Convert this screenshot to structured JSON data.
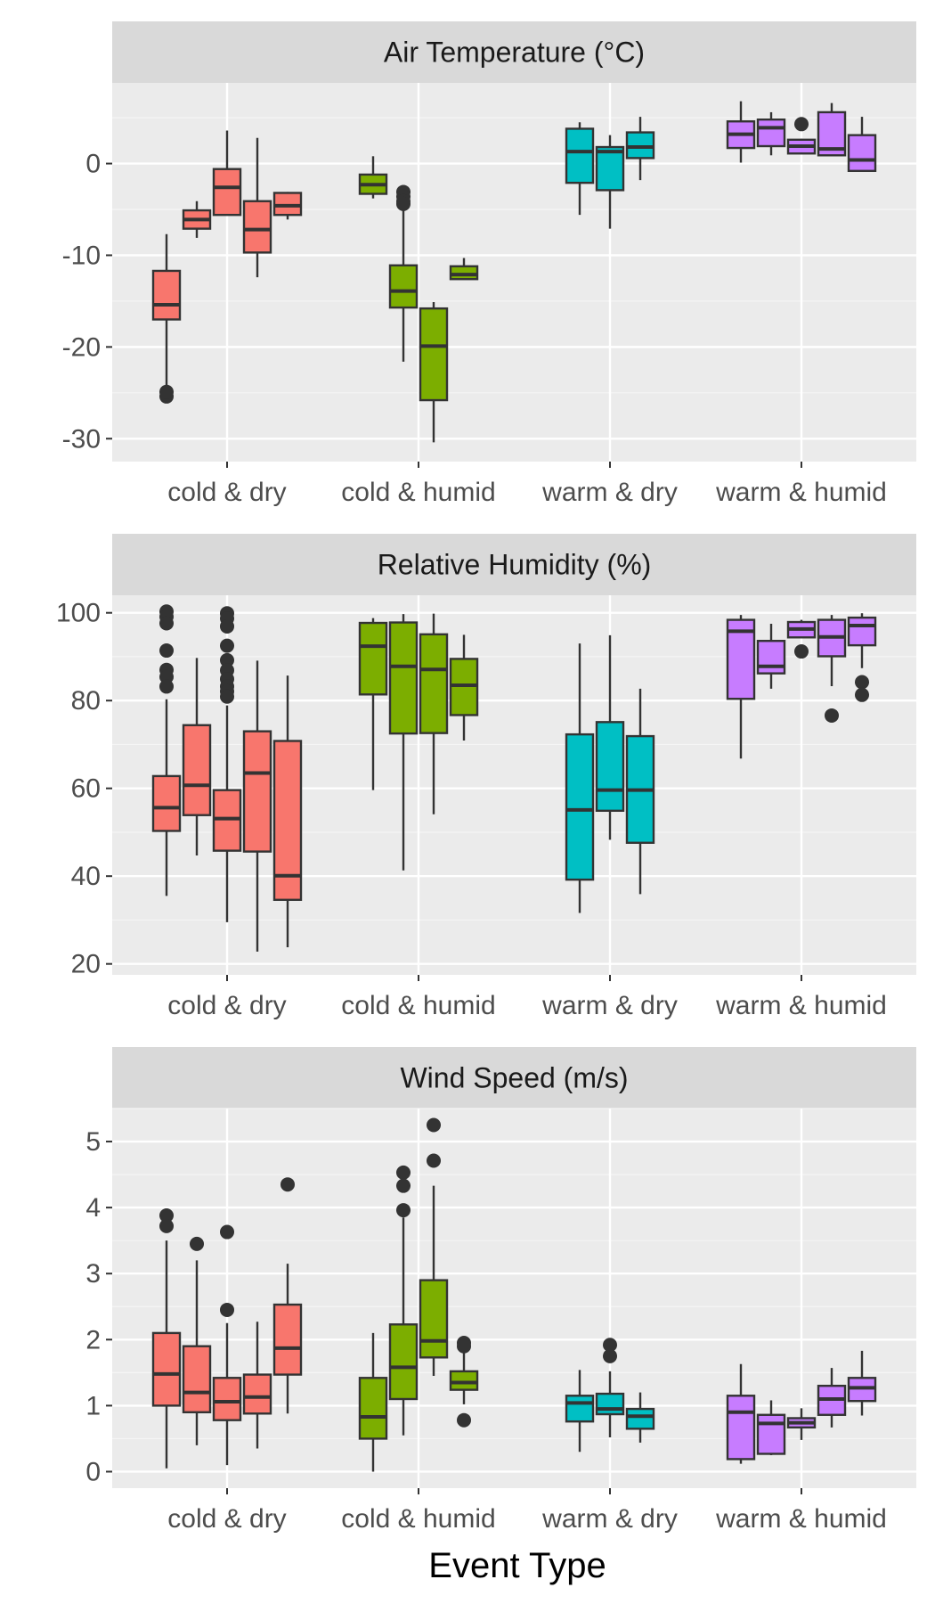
{
  "chart_data": {
    "type": "boxplot",
    "xlabel": "Event Type",
    "categories": [
      "cold & dry",
      "cold & humid",
      "warm & dry",
      "warm & humid"
    ],
    "group_colors": {
      "cold & dry": "#F8766D",
      "cold & humid": "#7CAE00",
      "warm & dry": "#00BFC4",
      "warm & humid": "#C77CFF"
    },
    "panels": [
      {
        "title": "Air Temperature (°C)",
        "ylim": [
          -32.5,
          8.8
        ],
        "yticks": [
          0,
          -10,
          -20,
          -30
        ],
        "ytick_labels": [
          "0",
          "-10",
          "-20",
          "-30"
        ],
        "groups": [
          {
            "category": "cold & dry",
            "boxes": [
              {
                "low": -25,
                "q1": -17,
                "median": -15.4,
                "q3": -11.7,
                "high": -7.7,
                "outliers": [
                  -25.4,
                  -24.9
                ]
              },
              {
                "low": -8.1,
                "q1": -7.1,
                "median": -6.1,
                "q3": -5.1,
                "high": -4.1,
                "outliers": []
              },
              {
                "low": -5.6,
                "q1": -5.6,
                "median": -2.6,
                "q3": -0.6,
                "high": 3.6,
                "outliers": []
              },
              {
                "low": -12.4,
                "q1": -9.7,
                "median": -7.2,
                "q3": -4.1,
                "high": 2.8,
                "outliers": []
              },
              {
                "low": -6.1,
                "q1": -5.6,
                "median": -4.6,
                "q3": -3.2,
                "high": -3.1,
                "outliers": []
              }
            ]
          },
          {
            "category": "cold & humid",
            "boxes": [
              {
                "low": -3.8,
                "q1": -3.3,
                "median": -2.3,
                "q3": -1.2,
                "high": 0.8,
                "outliers": []
              },
              {
                "low": -21.6,
                "q1": -15.7,
                "median": -13.9,
                "q3": -11.1,
                "high": -4.6,
                "outliers": [
                  -3.1,
                  -3.6,
                  -4.1,
                  -4.4
                ]
              },
              {
                "low": -30.4,
                "q1": -25.8,
                "median": -19.9,
                "q3": -15.8,
                "high": -15.1,
                "outliers": []
              },
              {
                "low": -12.6,
                "q1": -12.6,
                "median": -12.1,
                "q3": -11.2,
                "high": -10.3,
                "outliers": []
              }
            ]
          },
          {
            "category": "warm & dry",
            "boxes": [
              {
                "low": -5.6,
                "q1": -2.1,
                "median": 1.3,
                "q3": 3.8,
                "high": 4.5,
                "outliers": []
              },
              {
                "low": -7.1,
                "q1": -2.9,
                "median": 1.3,
                "q3": 1.8,
                "high": 3.1,
                "outliers": []
              },
              {
                "low": -1.8,
                "q1": 0.6,
                "median": 1.8,
                "q3": 3.4,
                "high": 5.1,
                "outliers": []
              }
            ]
          },
          {
            "category": "warm & humid",
            "boxes": [
              {
                "low": 0.1,
                "q1": 1.7,
                "median": 3.2,
                "q3": 4.6,
                "high": 6.8,
                "outliers": []
              },
              {
                "low": 0.9,
                "q1": 1.9,
                "median": 3.9,
                "q3": 4.8,
                "high": 5.6,
                "outliers": []
              },
              {
                "low": 1.1,
                "q1": 1.1,
                "median": 1.9,
                "q3": 2.6,
                "high": 2.7,
                "outliers": [
                  4.3
                ]
              },
              {
                "low": 0.9,
                "q1": 0.9,
                "median": 1.6,
                "q3": 5.6,
                "high": 6.6,
                "outliers": []
              },
              {
                "low": -0.8,
                "q1": -0.8,
                "median": 0.4,
                "q3": 3.1,
                "high": 5.1,
                "outliers": []
              }
            ]
          }
        ]
      },
      {
        "title": "Relative Humidity (%)",
        "ylim": [
          17.5,
          104
        ],
        "yticks": [
          100,
          80,
          60,
          40,
          20
        ],
        "ytick_labels": [
          "100",
          "80",
          "60",
          "40",
          "20"
        ],
        "groups": [
          {
            "category": "cold & dry",
            "boxes": [
              {
                "low": 35.5,
                "q1": 50.3,
                "median": 55.6,
                "q3": 62.8,
                "high": 80.3,
                "outliers": [
                  100.3,
                  99.1,
                  97.6,
                  91.4,
                  87.0,
                  85.4,
                  83.2
                ]
              },
              {
                "low": 44.7,
                "q1": 53.9,
                "median": 60.7,
                "q3": 74.4,
                "high": 89.7,
                "outliers": []
              },
              {
                "low": 29.5,
                "q1": 45.8,
                "median": 53.1,
                "q3": 59.6,
                "high": 78.9,
                "outliers": [
                  99.9,
                  98.7,
                  96.9,
                  92.5,
                  89.2,
                  86.9,
                  84.9,
                  83.2,
                  82.1,
                  80.9
                ]
              },
              {
                "low": 22.8,
                "q1": 45.6,
                "median": 63.5,
                "q3": 73.0,
                "high": 89.1,
                "outliers": []
              },
              {
                "low": 23.8,
                "q1": 34.6,
                "median": 40.1,
                "q3": 70.8,
                "high": 85.7,
                "outliers": []
              }
            ]
          },
          {
            "category": "cold & humid",
            "boxes": [
              {
                "low": 59.6,
                "q1": 81.4,
                "median": 92.4,
                "q3": 97.7,
                "high": 98.8,
                "outliers": []
              },
              {
                "low": 41.3,
                "q1": 72.5,
                "median": 87.8,
                "q3": 97.8,
                "high": 99.7,
                "outliers": []
              },
              {
                "low": 54.1,
                "q1": 72.6,
                "median": 87.1,
                "q3": 95.1,
                "high": 99.8,
                "outliers": []
              },
              {
                "low": 70.9,
                "q1": 76.7,
                "median": 83.5,
                "q3": 89.5,
                "high": 95.0,
                "outliers": []
              }
            ]
          },
          {
            "category": "warm & dry",
            "boxes": [
              {
                "low": 31.6,
                "q1": 39.2,
                "median": 55.1,
                "q3": 72.3,
                "high": 93.0,
                "outliers": []
              },
              {
                "low": 48.3,
                "q1": 54.9,
                "median": 59.6,
                "q3": 75.1,
                "high": 94.9,
                "outliers": []
              },
              {
                "low": 35.9,
                "q1": 47.6,
                "median": 59.6,
                "q3": 71.9,
                "high": 82.7,
                "outliers": []
              }
            ]
          },
          {
            "category": "warm & humid",
            "boxes": [
              {
                "low": 66.8,
                "q1": 80.4,
                "median": 95.8,
                "q3": 98.4,
                "high": 99.5,
                "outliers": []
              },
              {
                "low": 82.7,
                "q1": 86.2,
                "median": 87.8,
                "q3": 93.6,
                "high": 97.5,
                "outliers": []
              },
              {
                "low": 94.4,
                "q1": 94.4,
                "median": 96.3,
                "q3": 97.9,
                "high": 98.4,
                "outliers": [
                  91.2
                ]
              },
              {
                "low": 83.3,
                "q1": 90.1,
                "median": 94.5,
                "q3": 98.4,
                "high": 99.5,
                "outliers": [
                  76.6
                ]
              },
              {
                "low": 87.4,
                "q1": 92.6,
                "median": 97.1,
                "q3": 98.9,
                "high": 99.9,
                "outliers": [
                  84.2,
                  81.3
                ]
              }
            ]
          }
        ]
      },
      {
        "title": "Wind Speed (m/s)",
        "ylim": [
          -0.25,
          5.5
        ],
        "yticks": [
          5,
          4,
          3,
          2,
          1,
          0
        ],
        "ytick_labels": [
          "5",
          "4",
          "3",
          "2",
          "1",
          "0"
        ],
        "groups": [
          {
            "category": "cold & dry",
            "boxes": [
              {
                "low": 0.05,
                "q1": 1.0,
                "median": 1.48,
                "q3": 2.1,
                "high": 3.5,
                "outliers": [
                  3.88,
                  3.72
                ]
              },
              {
                "low": 0.4,
                "q1": 0.9,
                "median": 1.2,
                "q3": 1.9,
                "high": 3.2,
                "outliers": [
                  3.45
                ]
              },
              {
                "low": 0.1,
                "q1": 0.78,
                "median": 1.06,
                "q3": 1.42,
                "high": 2.25,
                "outliers": [
                  3.63,
                  2.45
                ]
              },
              {
                "low": 0.35,
                "q1": 0.88,
                "median": 1.13,
                "q3": 1.47,
                "high": 2.27,
                "outliers": []
              },
              {
                "low": 0.88,
                "q1": 1.47,
                "median": 1.87,
                "q3": 2.53,
                "high": 3.15,
                "outliers": [
                  4.35
                ]
              }
            ]
          },
          {
            "category": "cold & humid",
            "boxes": [
              {
                "low": 0.0,
                "q1": 0.5,
                "median": 0.83,
                "q3": 1.42,
                "high": 2.1,
                "outliers": []
              },
              {
                "low": 0.55,
                "q1": 1.1,
                "median": 1.58,
                "q3": 2.23,
                "high": 3.85,
                "outliers": [
                  4.53,
                  4.33,
                  3.96
                ]
              },
              {
                "low": 1.45,
                "q1": 1.73,
                "median": 1.98,
                "q3": 2.9,
                "high": 4.33,
                "outliers": [
                  5.25,
                  4.71
                ]
              },
              {
                "low": 1.02,
                "q1": 1.24,
                "median": 1.35,
                "q3": 1.52,
                "high": 1.85,
                "outliers": [
                  1.95,
                  1.9,
                  0.78
                ]
              }
            ]
          },
          {
            "category": "warm & dry",
            "boxes": [
              {
                "low": 0.3,
                "q1": 0.76,
                "median": 1.04,
                "q3": 1.15,
                "high": 1.54,
                "outliers": []
              },
              {
                "low": 0.52,
                "q1": 0.87,
                "median": 0.95,
                "q3": 1.18,
                "high": 1.52,
                "outliers": [
                  1.92,
                  1.75
                ]
              },
              {
                "low": 0.44,
                "q1": 0.65,
                "median": 0.84,
                "q3": 0.95,
                "high": 1.2,
                "outliers": []
              }
            ]
          },
          {
            "category": "warm & humid",
            "boxes": [
              {
                "low": 0.12,
                "q1": 0.19,
                "median": 0.9,
                "q3": 1.15,
                "high": 1.63,
                "outliers": []
              },
              {
                "low": 0.25,
                "q1": 0.27,
                "median": 0.73,
                "q3": 0.86,
                "high": 1.08,
                "outliers": []
              },
              {
                "low": 0.48,
                "q1": 0.67,
                "median": 0.74,
                "q3": 0.81,
                "high": 0.96,
                "outliers": []
              },
              {
                "low": 0.67,
                "q1": 0.86,
                "median": 1.1,
                "q3": 1.3,
                "high": 1.57,
                "outliers": []
              },
              {
                "low": 0.85,
                "q1": 1.07,
                "median": 1.27,
                "q3": 1.42,
                "high": 1.83,
                "outliers": []
              }
            ]
          }
        ]
      }
    ]
  }
}
